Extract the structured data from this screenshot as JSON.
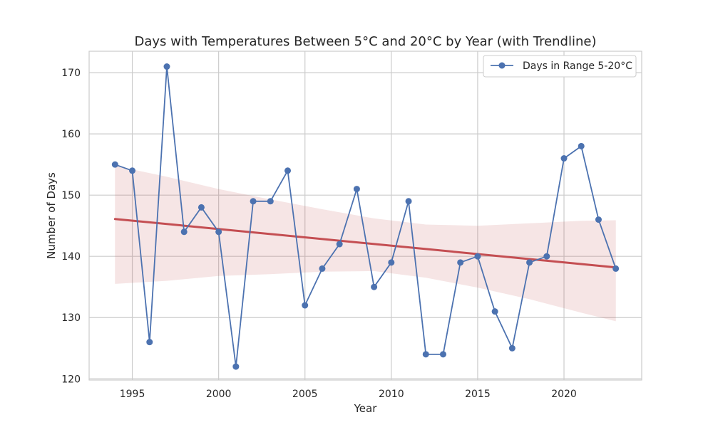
{
  "chart_data": {
    "type": "line",
    "title": "Days with Temperatures Between 5°C and 20°C by Year (with Trendline)",
    "xlabel": "Year",
    "ylabel": "Number of Days",
    "xlim": [
      1992.5,
      2024.5
    ],
    "ylim": [
      119.8,
      173.5
    ],
    "xticks": [
      1995,
      2000,
      2005,
      2010,
      2015,
      2020
    ],
    "yticks": [
      120,
      130,
      140,
      150,
      160,
      170
    ],
    "grid": true,
    "legend_position": "top-right",
    "series": [
      {
        "name": "Days in Range 5-20°C",
        "color": "#4c72b0",
        "marker": "circle",
        "x": [
          1994,
          1995,
          1996,
          1997,
          1998,
          1999,
          2000,
          2001,
          2002,
          2003,
          2004,
          2005,
          2006,
          2007,
          2008,
          2009,
          2010,
          2011,
          2012,
          2013,
          2014,
          2015,
          2016,
          2017,
          2018,
          2019,
          2020,
          2021,
          2022,
          2023
        ],
        "y": [
          155,
          154,
          126,
          171,
          144,
          148,
          144,
          122,
          149,
          149,
          154,
          132,
          138,
          142,
          151,
          135,
          139,
          149,
          124,
          124,
          139,
          140,
          131,
          125,
          139,
          140,
          156,
          158,
          146,
          138
        ]
      }
    ],
    "trendline": {
      "color": "#c44e52",
      "x": [
        1994,
        2023
      ],
      "y": [
        146.1,
        138.2
      ]
    },
    "confidence_band": {
      "color": "#c44e52",
      "x": [
        1994,
        1997,
        2000,
        2003,
        2006,
        2009,
        2012,
        2015,
        2018,
        2021,
        2023
      ],
      "lower": [
        135.5,
        136.0,
        136.8,
        137.1,
        137.5,
        137.6,
        136.5,
        134.9,
        133.0,
        130.8,
        129.4
      ],
      "upper": [
        154.8,
        153.0,
        151.0,
        149.3,
        147.7,
        146.2,
        145.2,
        145.0,
        145.4,
        145.8,
        145.9
      ]
    }
  }
}
